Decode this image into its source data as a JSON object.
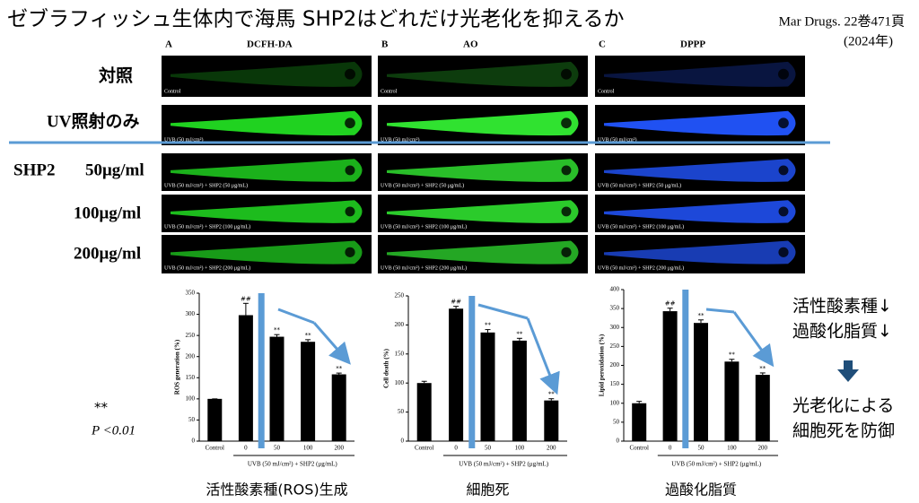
{
  "title": "ゼブラフィッシュ生体内で海馬 SHP2はどれだけ光老化を抑えるか",
  "citation": [
    "Mar Drugs. 22巻471頁",
    "(2024年)"
  ],
  "panels": [
    {
      "letter": "A",
      "stain": "DCFH-DA"
    },
    {
      "letter": "B",
      "stain": "AO"
    },
    {
      "letter": "C",
      "stain": "DPPP"
    }
  ],
  "row_labels": [
    "対照",
    "UV照射のみ",
    "50μg/ml",
    "100μg/ml",
    "200μg/ml"
  ],
  "group_label": "SHP2",
  "image_captions": [
    "Control",
    "UVB (50 mJ/cm²)",
    "UVB (50 mJ/cm²) + SHP2 (50 μg/mL)",
    "UVB (50 mJ/cm²) + SHP2 (100 μg/mL)",
    "UVB (50 mJ/cm²) + SHP2 (200 μg/mL)"
  ],
  "significance": [
    "**",
    "P <0.01"
  ],
  "conclusion": {
    "effects": [
      "活性酸素種↓",
      "過酸化脂質↓"
    ],
    "result": [
      "光老化による",
      "細胞死を防御"
    ]
  },
  "chart_data": [
    {
      "type": "bar",
      "title": "活性酸素種(ROS)生成",
      "ylabel": "ROS generation (%)",
      "xlabel": "UVB (50 mJ/cm²) + SHP2 (μg/mL)",
      "categories": [
        "Control",
        "0",
        "50",
        "100",
        "200"
      ],
      "values": [
        100,
        298,
        247,
        235,
        158
      ],
      "errors": [
        0,
        28,
        5,
        5,
        3
      ],
      "markers": [
        null,
        "##",
        "**",
        "**",
        "**"
      ],
      "color": "#000000",
      "ylim": [
        0,
        350
      ],
      "yticks": [
        0,
        50,
        100,
        150,
        200,
        250,
        300,
        350
      ]
    },
    {
      "type": "bar",
      "title": "細胞死",
      "ylabel": "Cell death (%)",
      "xlabel": "UVB (50 mJ/cm²) + SHP2 (μg/mL)",
      "categories": [
        "Control",
        "0",
        "50",
        "100",
        "200"
      ],
      "values": [
        100,
        228,
        187,
        173,
        70
      ],
      "errors": [
        3,
        4,
        5,
        4,
        3
      ],
      "markers": [
        null,
        "##",
        "**",
        "**",
        "**"
      ],
      "color": "#000000",
      "ylim": [
        0,
        250
      ],
      "yticks": [
        0,
        50,
        100,
        150,
        200,
        250
      ]
    },
    {
      "type": "bar",
      "title": "過酸化脂質",
      "ylabel": "Lipid peroxidation (%)",
      "xlabel": "UVB (50 mJ/cm²) + SHP2 (μg/mL)",
      "categories": [
        "Control",
        "0",
        "50",
        "100",
        "200"
      ],
      "values": [
        100,
        343,
        312,
        210,
        175
      ],
      "errors": [
        5,
        8,
        8,
        6,
        5
      ],
      "markers": [
        null,
        "##",
        "**",
        "**",
        "**"
      ],
      "color": "#000000",
      "ylim": [
        0,
        400
      ],
      "yticks": [
        0,
        50,
        100,
        150,
        200,
        250,
        300,
        350,
        400
      ]
    }
  ]
}
